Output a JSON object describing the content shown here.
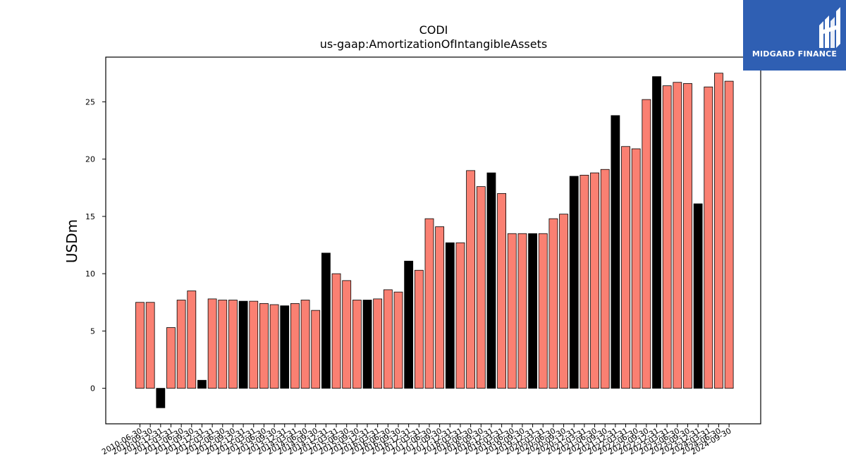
{
  "chart_data": {
    "type": "bar",
    "title": "CODI",
    "subtitle": "us-gaap:AmortizationOfIntangibleAssets",
    "xlabel": "",
    "ylabel": "USDm",
    "ylim": [
      -3.1,
      28.9
    ],
    "yticks": [
      0,
      5,
      10,
      15,
      20,
      25
    ],
    "grid": false,
    "bar_colors": {
      "quarter": "#fa8072",
      "year_end": "#000000",
      "edge": "#000000"
    },
    "categories": [
      "2010-06-30",
      "2010-09-30",
      "2010-12-31",
      "2011-03-31",
      "2011-06-30",
      "2011-09-30",
      "2011-12-31",
      "2012-03-31",
      "2012-06-30",
      "2012-09-30",
      "2012-12-31",
      "2013-03-31",
      "2013-06-30",
      "2013-09-30",
      "2013-12-31",
      "2014-03-31",
      "2014-06-30",
      "2014-09-30",
      "2014-12-31",
      "2015-03-31",
      "2015-06-30",
      "2015-09-30",
      "2015-12-31",
      "2016-03-31",
      "2016-06-30",
      "2016-09-30",
      "2016-12-31",
      "2017-03-31",
      "2017-06-30",
      "2017-09-30",
      "2017-12-31",
      "2018-03-31",
      "2018-06-30",
      "2018-09-30",
      "2018-12-31",
      "2019-03-31",
      "2019-06-30",
      "2019-09-30",
      "2019-12-31",
      "2020-03-31",
      "2020-06-30",
      "2020-09-30",
      "2020-12-31",
      "2021-03-31",
      "2021-06-30",
      "2021-09-30",
      "2021-12-31",
      "2022-03-31",
      "2022-06-30",
      "2022-09-30",
      "2022-12-31",
      "2023-03-31",
      "2023-06-30",
      "2023-09-30",
      "2023-12-31",
      "2024-03-31",
      "2024-06-30",
      "2024-09-30"
    ],
    "values": [
      7.5,
      7.5,
      -1.7,
      5.3,
      7.7,
      8.5,
      0.7,
      7.8,
      7.7,
      7.7,
      7.6,
      7.6,
      7.4,
      7.3,
      7.2,
      7.4,
      7.7,
      6.8,
      11.8,
      10.0,
      9.4,
      7.7,
      7.7,
      7.8,
      8.6,
      8.4,
      11.1,
      10.3,
      14.8,
      14.1,
      12.7,
      12.7,
      19.0,
      17.6,
      18.8,
      17.0,
      13.5,
      13.5,
      13.5,
      13.5,
      14.8,
      15.2,
      18.5,
      18.6,
      18.8,
      19.1,
      23.8,
      21.1,
      20.9,
      25.2,
      27.2,
      26.4,
      26.7,
      26.6,
      16.1,
      26.3,
      27.5,
      26.8
    ],
    "year_end_flags": [
      false,
      false,
      true,
      false,
      false,
      false,
      true,
      false,
      false,
      false,
      true,
      false,
      false,
      false,
      true,
      false,
      false,
      false,
      true,
      false,
      false,
      false,
      true,
      false,
      false,
      false,
      true,
      false,
      false,
      false,
      true,
      false,
      false,
      false,
      true,
      false,
      false,
      false,
      true,
      false,
      false,
      false,
      true,
      false,
      false,
      false,
      true,
      false,
      false,
      false,
      true,
      false,
      false,
      false,
      true,
      false,
      false,
      false
    ]
  },
  "logo": {
    "text": "MIDGARD FINANCE",
    "background": "#2f5fb3",
    "icon": "midgard-logo-icon"
  }
}
